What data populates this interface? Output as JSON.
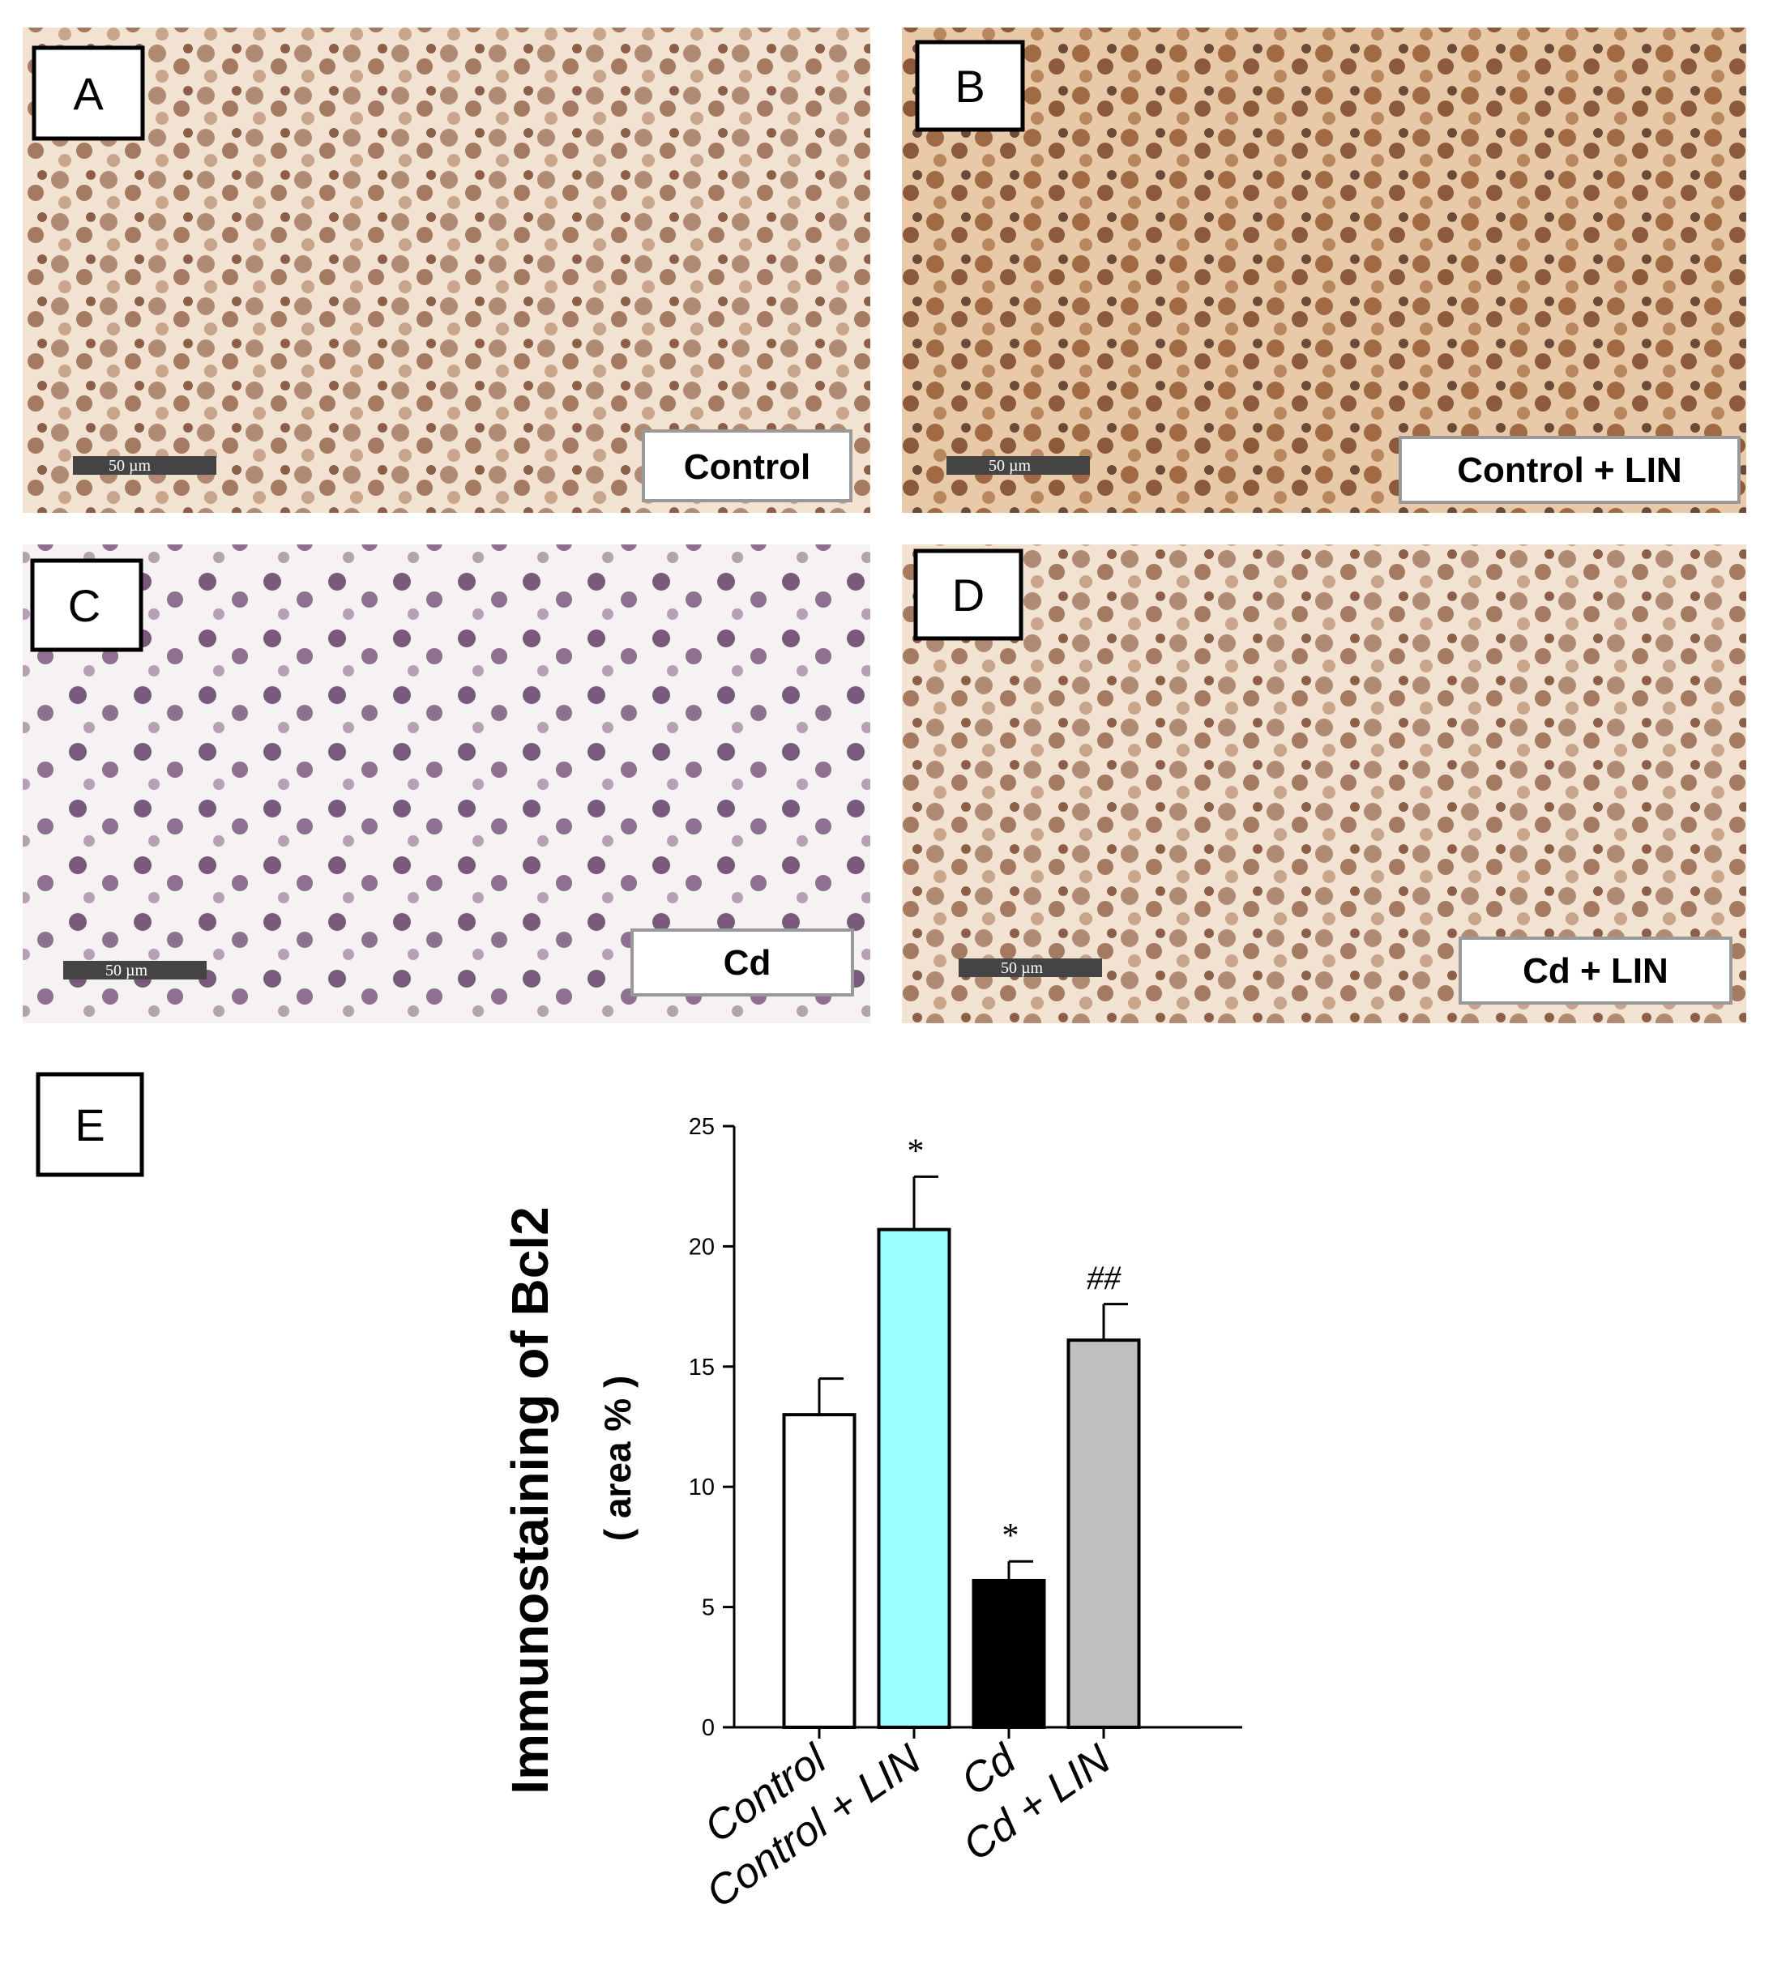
{
  "panels": [
    {
      "letter": "A",
      "label": "Control",
      "scale_bar": "50 µm"
    },
    {
      "letter": "B",
      "label": "Control + LIN",
      "scale_bar": "50 µm"
    },
    {
      "letter": "C",
      "label": "Cd",
      "scale_bar": "50 µm"
    },
    {
      "letter": "D",
      "label": "Cd + LIN",
      "scale_bar": "50 µm"
    }
  ],
  "chart_panel": {
    "letter": "E"
  },
  "chart_data": {
    "type": "bar",
    "ylabel": "Immunostaining of Bcl2",
    "ylabel_sub": "( area % )",
    "categories": [
      "Control",
      "Control + LIN",
      "Cd",
      "Cd + LIN"
    ],
    "values": [
      13,
      20.7,
      6.1,
      16.1
    ],
    "errors": [
      1.5,
      2.2,
      0.8,
      1.5
    ],
    "colors": [
      "#ffffff",
      "#99ffff",
      "#000000",
      "#c0c0c0"
    ],
    "significance": [
      null,
      "*",
      "*",
      "##"
    ],
    "ylim": [
      0,
      25
    ],
    "yticks": [
      0,
      5,
      10,
      15,
      20,
      25
    ]
  }
}
